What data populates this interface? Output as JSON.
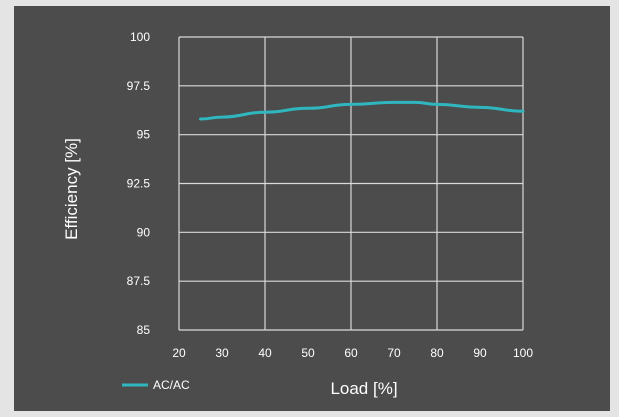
{
  "chart_data": {
    "type": "line",
    "title": "",
    "xlabel": "Load [%]",
    "ylabel": "Efficiency [%]",
    "xlim": [
      20,
      100
    ],
    "ylim": [
      85,
      100
    ],
    "xticks": [
      "20",
      "30",
      "40",
      "50",
      "60",
      "70",
      "80",
      "90",
      "100"
    ],
    "yticks": [
      "85",
      "87.5",
      "90",
      "92.5",
      "95",
      "97.5",
      "100"
    ],
    "grid": true,
    "legend_position": "bottom-left",
    "series": [
      {
        "name": "AC/AC",
        "color": "#2fb6be",
        "x": [
          25,
          30,
          40,
          50,
          60,
          70,
          75,
          80,
          90,
          100
        ],
        "y": [
          95.8,
          95.9,
          96.15,
          96.35,
          96.55,
          96.65,
          96.65,
          96.55,
          96.4,
          96.2
        ]
      }
    ]
  }
}
